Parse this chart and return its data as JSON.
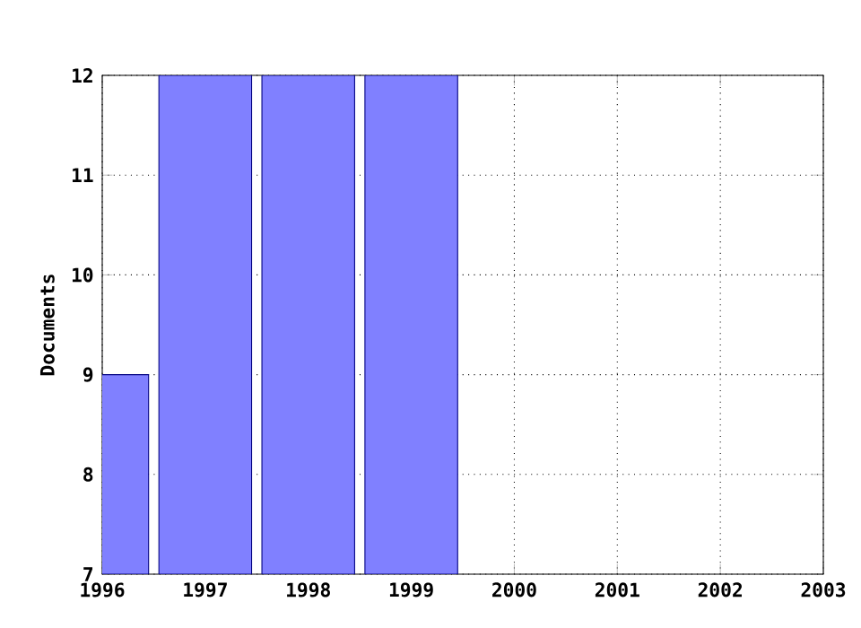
{
  "chart_data": {
    "type": "bar",
    "ylabel": "Documents",
    "x": [
      1996,
      1997,
      1998,
      1999
    ],
    "series": [
      {
        "color": "#8080ff",
        "values": [
          9,
          12,
          12,
          12
        ]
      }
    ],
    "xlim": [
      1996,
      2003
    ],
    "xticks": [
      1996,
      1997,
      1998,
      1999,
      2000,
      2001,
      2002,
      2003
    ],
    "ylim": [
      7,
      12
    ],
    "yticks": [
      7,
      8,
      9,
      10,
      11,
      12
    ],
    "grid": true
  }
}
